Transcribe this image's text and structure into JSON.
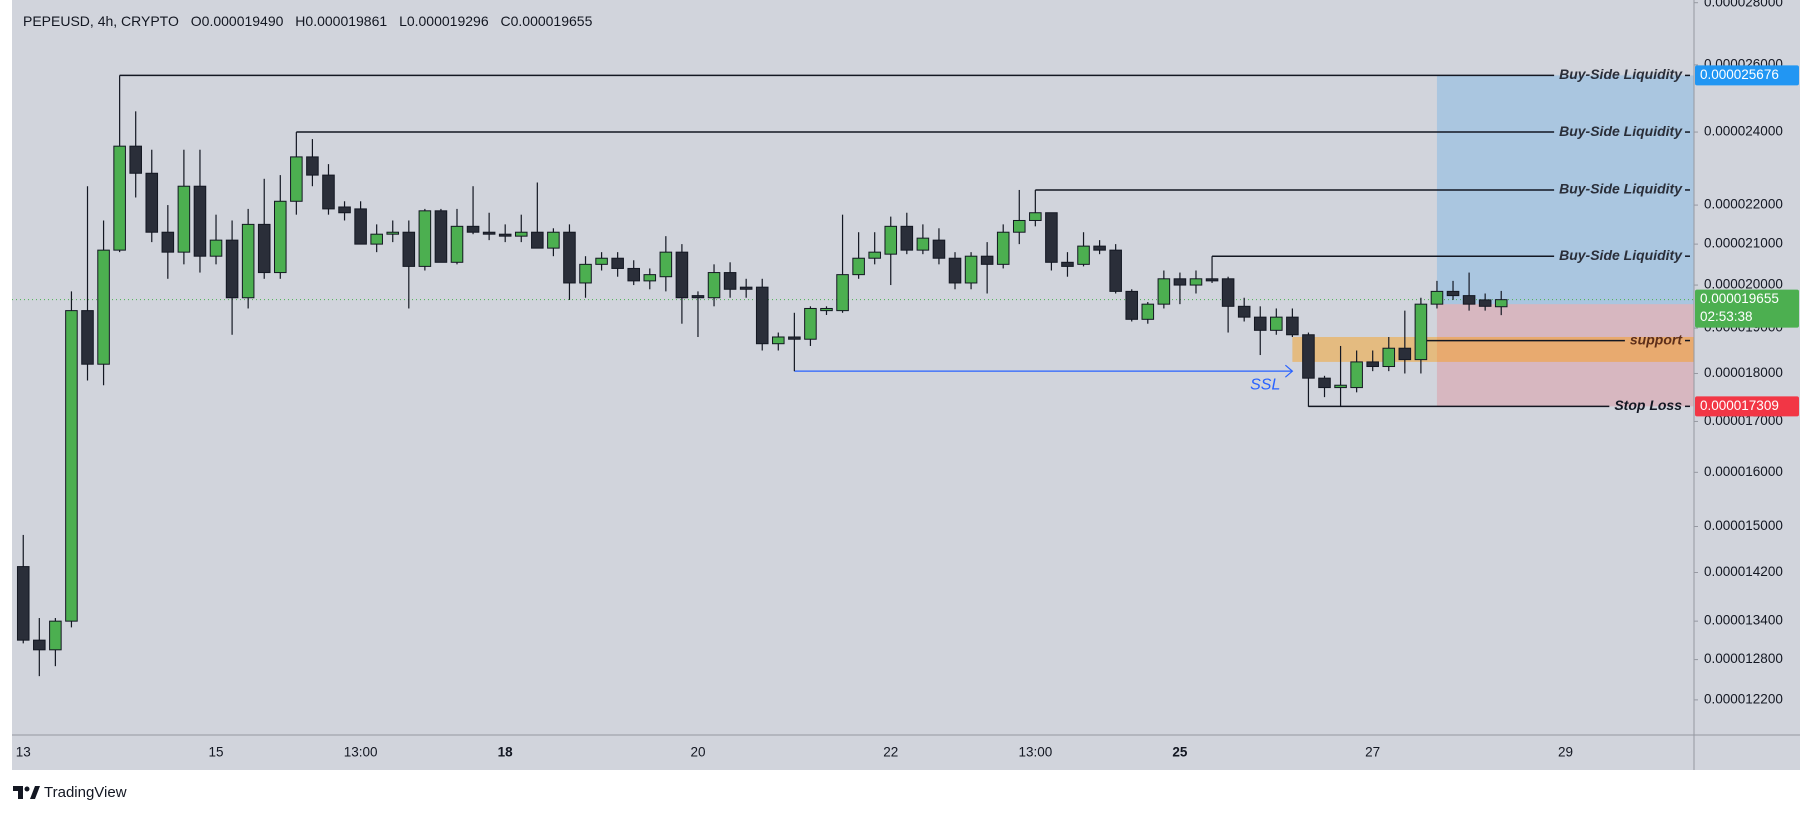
{
  "chart_data": {
    "type": "candlestick",
    "symbol": "PEPEUSD, 4h, CRYPTO",
    "ohlc_legend": [
      "O0.000019490",
      "H0.000019861",
      "L0.000019296",
      "C0.000019655"
    ],
    "brand": "TradingView",
    "log_scale": true,
    "up_color": "#4caf50",
    "down_color": "#2a2e39",
    "xlim": [
      -0.7,
      104
    ],
    "ylim": [
      1.17e-05,
      2.809e-05
    ],
    "xticks": [
      {
        "value": 0,
        "label": "13"
      },
      {
        "value": 12,
        "label": "15"
      },
      {
        "value": 21,
        "label": "13:00"
      },
      {
        "value": 30,
        "label": "18",
        "bold": true
      },
      {
        "value": 42,
        "label": "20"
      },
      {
        "value": 54,
        "label": "22"
      },
      {
        "value": 63,
        "label": "13:00"
      },
      {
        "value": 72,
        "label": "25",
        "bold": true
      },
      {
        "value": 84,
        "label": "27"
      },
      {
        "value": 96,
        "label": "29"
      }
    ],
    "yticks": [
      {
        "value": 2.8e-05,
        "label": "0.000028000"
      },
      {
        "value": 2.6e-05,
        "label": "0.000026000"
      },
      {
        "value": 2.4e-05,
        "label": "0.000024000"
      },
      {
        "value": 2.2e-05,
        "label": "0.000022000"
      },
      {
        "value": 2.1e-05,
        "label": "0.000021000"
      },
      {
        "value": 2e-05,
        "label": "0.000020000"
      },
      {
        "value": 1.9e-05,
        "label": "0.000019000"
      },
      {
        "value": 1.8e-05,
        "label": "0.000018000"
      },
      {
        "value": 1.7e-05,
        "label": "0.000017000"
      },
      {
        "value": 1.6e-05,
        "label": "0.000016000"
      },
      {
        "value": 1.5e-05,
        "label": "0.000015000"
      },
      {
        "value": 1.42e-05,
        "label": "0.000014200"
      },
      {
        "value": 1.34e-05,
        "label": "0.000013400"
      },
      {
        "value": 1.28e-05,
        "label": "0.000012800"
      },
      {
        "value": 1.22e-05,
        "label": "0.000012200"
      }
    ],
    "candles": {
      "open": [
        1.43e-05,
        1.31e-05,
        1.295e-05,
        1.34e-05,
        1.94e-05,
        1.82e-05,
        2.085e-05,
        2.36e-05,
        2.285e-05,
        2.13e-05,
        2.08e-05,
        2.25e-05,
        2.07e-05,
        2.11e-05,
        1.97e-05,
        2.15e-05,
        2.03e-05,
        2.21e-05,
        2.33e-05,
        2.28e-05,
        2.195e-05,
        2.19e-05,
        2.1e-05,
        2.125e-05,
        2.13e-05,
        2.045e-05,
        2.185e-05,
        2.055e-05,
        2.145e-05,
        2.13e-05,
        2.125e-05,
        2.12e-05,
        2.13e-05,
        2.09e-05,
        2.13e-05,
        2.005e-05,
        2.05e-05,
        2.065e-05,
        2.04e-05,
        2.01e-05,
        2.02e-05,
        2.08e-05,
        1.975e-05,
        1.97e-05,
        2.03e-05,
        1.995e-05,
        1.995e-05,
        1.865e-05,
        1.88e-05,
        1.875e-05,
        1.94e-05,
        1.94e-05,
        2.025e-05,
        2.065e-05,
        2.075e-05,
        2.145e-05,
        2.085e-05,
        2.11e-05,
        2.065e-05,
        2.005e-05,
        2.07e-05,
        2.05e-05,
        2.13e-05,
        2.16e-05,
        2.18e-05,
        2.055e-05,
        2.05e-05,
        2.095e-05,
        2.085e-05,
        1.985e-05,
        1.92e-05,
        1.955e-05,
        2.015e-05,
        2e-05,
        2.015e-05,
        2.015e-05,
        1.95e-05,
        1.925e-05,
        1.895e-05,
        1.925e-05,
        1.885e-05,
        1.79e-05,
        1.77e-05,
        1.77e-05,
        1.825e-05,
        1.815e-05,
        1.855e-05,
        1.83e-05,
        1.955e-05,
        1.985e-05,
        1.975e-05,
        1.965e-05,
        1.949e-05
      ],
      "high": [
        1.485e-05,
        1.345e-05,
        1.345e-05,
        1.985e-05,
        2.25e-05,
        2.16e-05,
        2.5676e-05,
        2.46e-05,
        2.35e-05,
        2.2e-05,
        2.35e-05,
        2.35e-05,
        2.175e-05,
        2.16e-05,
        2.19e-05,
        2.27e-05,
        2.28e-05,
        2.4e-05,
        2.38e-05,
        2.31e-05,
        2.21e-05,
        2.21e-05,
        2.15e-05,
        2.16e-05,
        2.16e-05,
        2.19e-05,
        2.19e-05,
        2.19e-05,
        2.25e-05,
        2.18e-05,
        2.15e-05,
        2.175e-05,
        2.26e-05,
        2.14e-05,
        2.15e-05,
        2.07e-05,
        2.08e-05,
        2.08e-05,
        2.06e-05,
        2.04e-05,
        2.12e-05,
        2.1e-05,
        1.985e-05,
        2.05e-05,
        2.055e-05,
        2.015e-05,
        2.015e-05,
        1.89e-05,
        1.935e-05,
        1.95e-05,
        1.95e-05,
        2.175e-05,
        2.13e-05,
        2.13e-05,
        2.17e-05,
        2.18e-05,
        2.15e-05,
        2.14e-05,
        2.08e-05,
        2.08e-05,
        2.105e-05,
        2.15e-05,
        2.24e-05,
        2.24e-05,
        2.18e-05,
        2.08e-05,
        2.13e-05,
        2.11e-05,
        2.1e-05,
        1.99e-05,
        1.96e-05,
        2.035e-05,
        2.03e-05,
        2.035e-05,
        2.07e-05,
        2.02e-05,
        1.97e-05,
        1.95e-05,
        1.945e-05,
        1.945e-05,
        1.89e-05,
        1.795e-05,
        1.86e-05,
        1.85e-05,
        1.85e-05,
        1.88e-05,
        1.94e-05,
        1.97e-05,
        2.01e-05,
        2.01e-05,
        2.03e-05,
        1.98e-05,
        1.9861e-05
      ],
      "low": [
        1.305e-05,
        1.255e-05,
        1.27e-05,
        1.33e-05,
        1.785e-05,
        1.775e-05,
        2.08e-05,
        2.22e-05,
        2.105e-05,
        2.015e-05,
        2.05e-05,
        2.03e-05,
        2.05e-05,
        1.885e-05,
        1.945e-05,
        2.015e-05,
        2.015e-05,
        2.175e-05,
        2.25e-05,
        2.175e-05,
        2.16e-05,
        2.1e-05,
        2.08e-05,
        2.105e-05,
        1.945e-05,
        2.035e-05,
        2.055e-05,
        2.05e-05,
        2.125e-05,
        2.11e-05,
        2.105e-05,
        2.105e-05,
        2.09e-05,
        2.07e-05,
        1.965e-05,
        1.97e-05,
        2.035e-05,
        2.02e-05,
        2e-05,
        1.99e-05,
        1.985e-05,
        1.91e-05,
        1.88e-05,
        1.95e-05,
        1.97e-05,
        1.97e-05,
        1.85e-05,
        1.85e-05,
        1.805e-05,
        1.86e-05,
        1.93e-05,
        1.935e-05,
        2.015e-05,
        2.05e-05,
        2e-05,
        2.075e-05,
        2.075e-05,
        2.05e-05,
        1.99e-05,
        1.99e-05,
        1.98e-05,
        2.04e-05,
        2.1e-05,
        2.145e-05,
        2.035e-05,
        2.02e-05,
        2.045e-05,
        2.075e-05,
        1.98e-05,
        1.915e-05,
        1.91e-05,
        1.945e-05,
        1.955e-05,
        1.98e-05,
        2.005e-05,
        1.89e-05,
        1.915e-05,
        1.84e-05,
        1.885e-05,
        1.88e-05,
        1.73e-05,
        1.75e-05,
        1.73e-05,
        1.76e-05,
        1.805e-05,
        1.805e-05,
        1.8e-05,
        1.8e-05,
        1.945e-05,
        1.965e-05,
        1.94e-05,
        1.94e-05,
        1.9296e-05
      ],
      "close": [
        1.31e-05,
        1.295e-05,
        1.34e-05,
        1.94e-05,
        1.82e-05,
        2.085e-05,
        2.36e-05,
        2.285e-05,
        2.13e-05,
        2.08e-05,
        2.25e-05,
        2.07e-05,
        2.11e-05,
        1.97e-05,
        2.15e-05,
        2.03e-05,
        2.21e-05,
        2.33e-05,
        2.28e-05,
        2.19e-05,
        2.18e-05,
        2.1e-05,
        2.125e-05,
        2.13e-05,
        2.045e-05,
        2.185e-05,
        2.055e-05,
        2.145e-05,
        2.13e-05,
        2.125e-05,
        2.12e-05,
        2.13e-05,
        2.09e-05,
        2.13e-05,
        2.005e-05,
        2.05e-05,
        2.065e-05,
        2.04e-05,
        2.01e-05,
        2.025e-05,
        2.08e-05,
        1.97e-05,
        1.97e-05,
        2.03e-05,
        1.99e-05,
        1.99e-05,
        1.865e-05,
        1.88e-05,
        1.875e-05,
        1.945e-05,
        1.945e-05,
        2.025e-05,
        2.065e-05,
        2.08e-05,
        2.145e-05,
        2.085e-05,
        2.115e-05,
        2.065e-05,
        2.005e-05,
        2.07e-05,
        2.05e-05,
        2.13e-05,
        2.16e-05,
        2.18e-05,
        2.055e-05,
        2.045e-05,
        2.095e-05,
        2.085e-05,
        1.985e-05,
        1.92e-05,
        1.955e-05,
        2.015e-05,
        2e-05,
        2.015e-05,
        2.01e-05,
        1.95e-05,
        1.925e-05,
        1.895e-05,
        1.925e-05,
        1.885e-05,
        1.79e-05,
        1.77e-05,
        1.775e-05,
        1.825e-05,
        1.815e-05,
        1.855e-05,
        1.83e-05,
        1.955e-05,
        1.985e-05,
        1.975e-05,
        1.955e-05,
        1.95e-05,
        1.9655e-05
      ]
    },
    "countdown": "02:53:38",
    "levels": [
      {
        "label": "Buy-Side Liquidity",
        "value": 2.5676e-05,
        "start": 6
      },
      {
        "label": "Buy-Side Liquidity",
        "value": 2.4e-05,
        "start": 17
      },
      {
        "label": "Buy-Side Liquidity",
        "value": 2.24e-05,
        "start": 63
      },
      {
        "label": "Buy-Side Liquidity",
        "value": 2.07e-05,
        "start": 74
      }
    ],
    "support": {
      "label": "support",
      "value": 1.872e-05,
      "start": 87
    },
    "stop_loss": {
      "label": "Stop Loss",
      "start": 80
    },
    "ssl": {
      "label": "SSL",
      "value": 1.805e-05,
      "start": 48,
      "end": 79
    },
    "zone": {
      "start": 79,
      "top": 1.88e-05,
      "bottom": 1.825e-05
    },
    "position": {
      "start": 88,
      "target": 2.5676e-05,
      "entry": 1.955e-05,
      "stop": 1.7309e-05
    }
  }
}
